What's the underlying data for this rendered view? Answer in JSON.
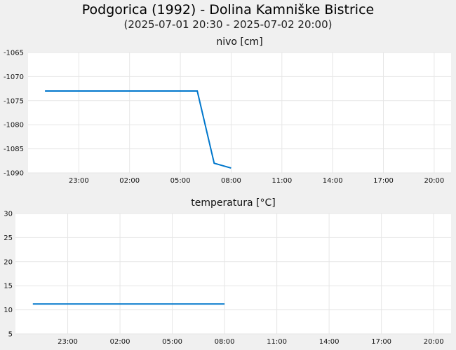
{
  "title": "Podgorica (1992) - Dolina Kamniške Bistrice",
  "subtitle": "(2025-07-01 20:30 - 2025-07-02 20:00)",
  "colors": {
    "series": "#0077cc",
    "grid": "#e6e6e6",
    "plot_background": "#ffffff",
    "page_background": "#f0f0f0"
  },
  "chart_data": [
    {
      "type": "line",
      "title": "nivo [cm]",
      "xlabel": "",
      "ylabel": "",
      "grid": true,
      "xlim": [
        "2025-07-01 20:00",
        "2025-07-02 21:00"
      ],
      "ylim": [
        -1090,
        -1065
      ],
      "x_ticks": [
        "23:00",
        "02:00",
        "05:00",
        "08:00",
        "11:00",
        "14:00",
        "17:00",
        "20:00"
      ],
      "y_ticks": [
        "-1065",
        "-1070",
        "-1075",
        "-1080",
        "-1085",
        "-1090"
      ],
      "series": [
        {
          "x": [
            "2025-07-01 21:00",
            "2025-07-02 06:00",
            "2025-07-02 07:00",
            "2025-07-02 08:00"
          ],
          "values": [
            -1073,
            -1073,
            -1088,
            -1089
          ]
        }
      ]
    },
    {
      "type": "line",
      "title": "temperatura [°C]",
      "xlabel": "",
      "ylabel": "",
      "grid": true,
      "xlim": [
        "2025-07-01 20:00",
        "2025-07-02 21:00"
      ],
      "ylim": [
        5,
        30
      ],
      "x_ticks": [
        "23:00",
        "02:00",
        "05:00",
        "08:00",
        "11:00",
        "14:00",
        "17:00",
        "20:00"
      ],
      "y_ticks": [
        "30",
        "25",
        "20",
        "15",
        "10",
        "5"
      ],
      "series": [
        {
          "x": [
            "2025-07-01 21:00",
            "2025-07-02 08:00"
          ],
          "values": [
            11.2,
            11.2
          ]
        }
      ]
    }
  ]
}
